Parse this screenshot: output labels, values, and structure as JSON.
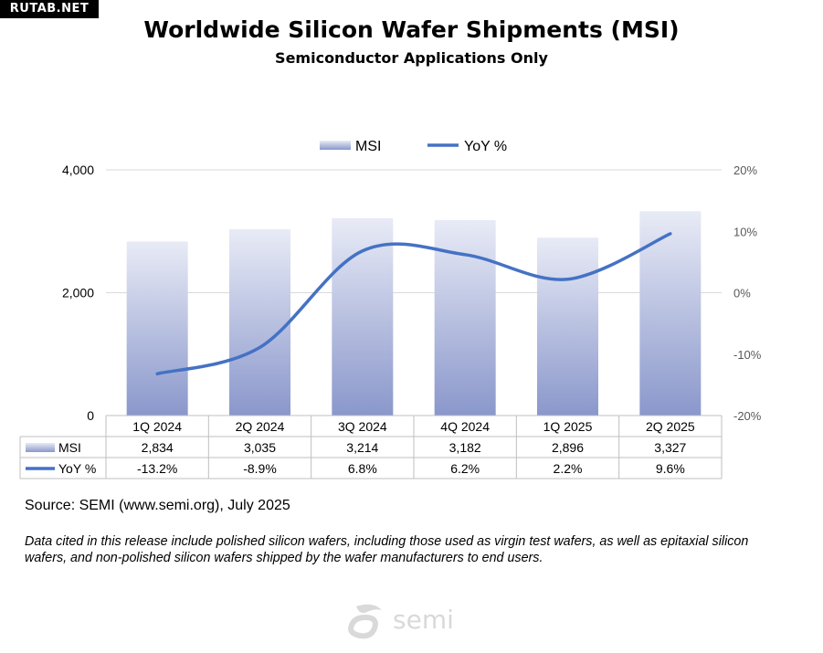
{
  "badge": "RUTAB.NET",
  "colors": {
    "bar_top": "#e8ebf6",
    "bar_bottom": "#8a97cb",
    "line": "#4472c4",
    "grid": "#d9d9d9",
    "table_border": "#bfbfbf",
    "logo": "#d9d9d9"
  },
  "chart_data": {
    "type": "bar+line",
    "title": "Worldwide Silicon Wafer Shipments (MSI)",
    "subtitle": "Semiconductor Applications Only",
    "categories": [
      "1Q 2024",
      "2Q 2024",
      "3Q 2024",
      "4Q 2024",
      "1Q 2025",
      "2Q 2025"
    ],
    "series": [
      {
        "name": "MSI",
        "type": "bar",
        "axis": "left",
        "values": [
          2834,
          3035,
          3214,
          3182,
          2896,
          3327
        ],
        "labels": [
          "2,834",
          "3,035",
          "3,214",
          "3,182",
          "2,896",
          "3,327"
        ]
      },
      {
        "name": "YoY %",
        "type": "line",
        "axis": "right",
        "values": [
          -13.2,
          -8.9,
          6.8,
          6.2,
          2.2,
          9.6
        ],
        "labels": [
          "-13.2%",
          "-8.9%",
          "6.8%",
          "6.2%",
          "2.2%",
          "9.6%"
        ]
      }
    ],
    "y_left": {
      "range": [
        0,
        4000
      ],
      "ticks": [
        0,
        2000,
        4000
      ],
      "tick_labels": [
        "0",
        "2,000",
        "4,000"
      ]
    },
    "y_right": {
      "range": [
        -20,
        20
      ],
      "ticks": [
        20,
        10,
        0,
        -10,
        -20
      ],
      "tick_labels": [
        "20%",
        "10%",
        "0%",
        "-10%",
        "-20%"
      ]
    },
    "legend": {
      "placement": "top-center",
      "entries": [
        "MSI",
        "YoY %"
      ]
    },
    "grid": true
  },
  "source": "Source: SEMI (www.semi.org), July 2025",
  "note": "Data cited in this release include polished silicon wafers, including those used as virgin test wafers, as well as epitaxial silicon wafers, and non-polished silicon wafers shipped by the wafer manufacturers to end users.",
  "logo_text": "semi"
}
